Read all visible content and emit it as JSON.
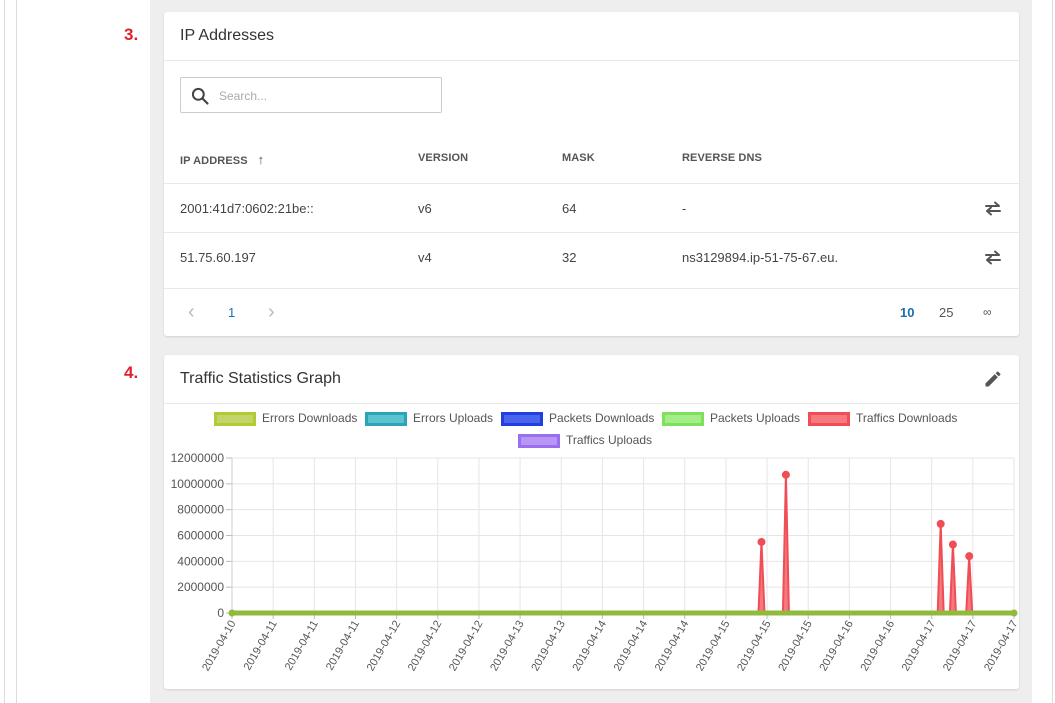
{
  "sections": {
    "ip": {
      "number": "3.",
      "title": "IP Addresses"
    },
    "traffic": {
      "number": "4.",
      "title": "Traffic Statistics Graph"
    }
  },
  "search": {
    "placeholder": "Search...",
    "value": ""
  },
  "table": {
    "headers": {
      "ip": "IP ADDRESS",
      "version": "VERSION",
      "mask": "MASK",
      "reverse": "REVERSE DNS"
    },
    "sort_indicator": "↑",
    "rows": [
      {
        "ip": "2001:41d7:0602:21be::",
        "version": "v6",
        "mask": "64",
        "reverse": "-"
      },
      {
        "ip": "51.75.60.197",
        "version": "v4",
        "mask": "32",
        "reverse": "ns3129894.ip-51-75-67.eu."
      }
    ]
  },
  "pagination": {
    "prev": "‹",
    "current": "1",
    "next": "›",
    "sizes": [
      "10",
      "25",
      "∞"
    ],
    "active_size": "10"
  },
  "colors": {
    "accent": "#1a6fb0",
    "step_number": "#e0202f"
  },
  "chart_data": {
    "type": "line",
    "title": "",
    "xlabel": "",
    "ylabel": "",
    "ylim": [
      0,
      12000000
    ],
    "yticks": [
      "12000000",
      "10000000",
      "8000000",
      "6000000",
      "4000000",
      "2000000",
      "0"
    ],
    "xticks": [
      "2019-04-10",
      "2019-04-11",
      "2019-04-11",
      "2019-04-11",
      "2019-04-12",
      "2019-04-12",
      "2019-04-12",
      "2019-04-13",
      "2019-04-13",
      "2019-04-14",
      "2019-04-14",
      "2019-04-14",
      "2019-04-15",
      "2019-04-15",
      "2019-04-15",
      "2019-04-16",
      "2019-04-16",
      "2019-04-17",
      "2019-04-17",
      "2019-04-17"
    ],
    "grid": true,
    "legend_position": "top-center",
    "series": [
      {
        "name": "Errors Downloads",
        "color": "#b5c934",
        "fill": "#c4d46c",
        "points": []
      },
      {
        "name": "Errors Uploads",
        "color": "#2aa4b6",
        "fill": "#5bc2cf",
        "points": []
      },
      {
        "name": "Packets Downloads",
        "color": "#1f3fe0",
        "fill": "#4b64ee",
        "points": []
      },
      {
        "name": "Packets Uploads",
        "color": "#7fe05e",
        "fill": "#a4ee8a",
        "points": []
      },
      {
        "name": "Traffics Downloads",
        "color": "#f04d55",
        "fill": "#f57a80",
        "points": [
          {
            "x": "2019-04-15 10:00",
            "y": 5500000
          },
          {
            "x": "2019-04-15 16:00",
            "y": 10700000
          },
          {
            "x": "2019-04-17 06:00",
            "y": 6900000
          },
          {
            "x": "2019-04-17 09:00",
            "y": 5300000
          },
          {
            "x": "2019-04-17 13:00",
            "y": 4400000
          }
        ]
      },
      {
        "name": "Traffics Uploads",
        "color": "#9b6ef0",
        "fill": "#b896f4",
        "points": []
      }
    ]
  }
}
